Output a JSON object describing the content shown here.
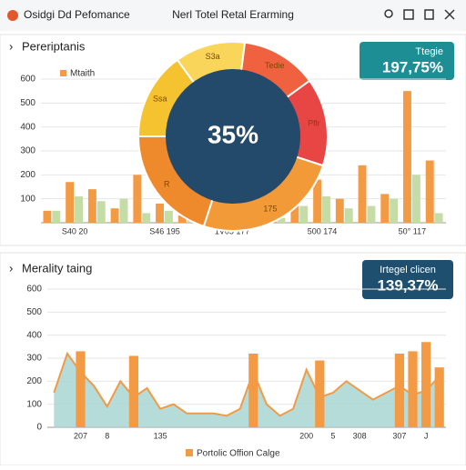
{
  "header": {
    "title": "Osidgi Dd Pefomance",
    "center": "Nerl Totel Retal Erarming"
  },
  "kpis": [
    {
      "label": "Ttegie",
      "value": "197,75%"
    },
    {
      "label": "Irtegel clicen",
      "value": "139,37%"
    }
  ],
  "chart_data": [
    {
      "type": "bar",
      "title": "Pereriptanis",
      "categories": [
        null,
        "S40 20",
        null,
        null,
        null,
        "S46 195",
        null,
        null,
        "1V05 177",
        null,
        null,
        null,
        "500 174",
        null,
        null,
        null,
        "50° 117",
        null
      ],
      "series": [
        {
          "name": "Mtaith",
          "color": "#f39a45",
          "values": [
            50,
            170,
            140,
            60,
            200,
            80,
            30,
            40,
            60,
            90,
            120,
            150,
            180,
            100,
            240,
            120,
            550,
            260
          ]
        },
        {
          "color": "#c4dca6",
          "values": [
            50,
            110,
            90,
            100,
            40,
            50,
            20,
            20,
            30,
            60,
            20,
            70,
            110,
            60,
            70,
            100,
            200,
            40
          ]
        }
      ],
      "ylim": [
        0,
        600
      ],
      "yticks": [
        100,
        200,
        300,
        400,
        500,
        600
      ]
    },
    {
      "type": "pie",
      "center_label": "35%",
      "values": [
        15,
        12,
        13,
        15,
        25,
        20
      ],
      "labels": [
        "Ssa",
        "S3a",
        "Tedie",
        "Pflr",
        "175",
        "R"
      ],
      "colors": [
        "#f6c330",
        "#f9d55a",
        "#f0623f",
        "#e84545",
        "#f39a38",
        "#ef8a2c"
      ]
    },
    {
      "type": "area",
      "title": "Merality taing",
      "legend": "Portolic Offion Calge",
      "categories": [
        null,
        null,
        "207",
        null,
        "8",
        null,
        null,
        null,
        "135",
        null,
        null,
        null,
        null,
        null,
        null,
        null,
        null,
        null,
        null,
        "200",
        null,
        "5",
        null,
        "308",
        null,
        null,
        "307",
        null,
        "J",
        null
      ],
      "series": [
        {
          "color": "#a9d6d3",
          "values": [
            150,
            320,
            240,
            180,
            90,
            200,
            130,
            170,
            80,
            100,
            60,
            60,
            60,
            50,
            80,
            240,
            100,
            50,
            80,
            250,
            130,
            150,
            200,
            160,
            120,
            150,
            180,
            140,
            160,
            220
          ]
        },
        {
          "color": "#f39a45",
          "values": [
            null,
            null,
            330,
            null,
            null,
            null,
            310,
            null,
            null,
            null,
            null,
            null,
            null,
            null,
            null,
            320,
            null,
            null,
            null,
            null,
            290,
            null,
            null,
            null,
            null,
            null,
            320,
            330,
            370,
            260
          ]
        }
      ],
      "ylim": [
        0,
        600
      ],
      "yticks": [
        0,
        100,
        200,
        300,
        400,
        500,
        600
      ]
    }
  ]
}
